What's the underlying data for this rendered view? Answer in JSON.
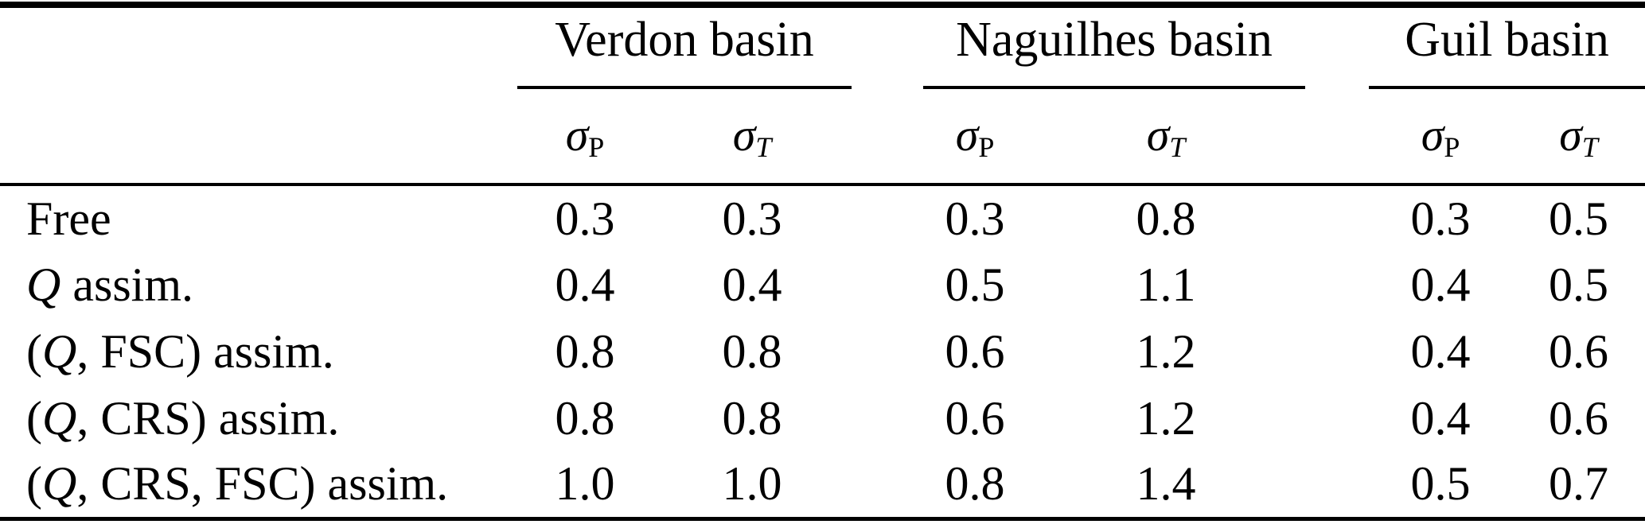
{
  "table": {
    "groups": [
      {
        "label": "Verdon basin"
      },
      {
        "label": "Naguilhes basin"
      },
      {
        "label": "Guil basin"
      }
    ],
    "col_header": {
      "sigma": "σ",
      "sub_precip": "P",
      "sub_temp": "T"
    },
    "rows": [
      {
        "label": {
          "pre": "Free",
          "q": "",
          "post": ""
        },
        "values": [
          "0.3",
          "0.3",
          "0.3",
          "0.8",
          "0.3",
          "0.5"
        ]
      },
      {
        "label": {
          "pre": "",
          "q": "Q",
          "post": " assim."
        },
        "values": [
          "0.4",
          "0.4",
          "0.5",
          "1.1",
          "0.4",
          "0.5"
        ]
      },
      {
        "label": {
          "pre": "(",
          "q": "Q",
          "post": ", FSC) assim."
        },
        "values": [
          "0.8",
          "0.8",
          "0.6",
          "1.2",
          "0.4",
          "0.6"
        ]
      },
      {
        "label": {
          "pre": "(",
          "q": "Q",
          "post": ", CRS) assim."
        },
        "values": [
          "0.8",
          "0.8",
          "0.6",
          "1.2",
          "0.4",
          "0.6"
        ]
      },
      {
        "label": {
          "pre": "(",
          "q": "Q",
          "post": ", CRS, FSC) assim."
        },
        "values": [
          "1.0",
          "1.0",
          "0.8",
          "1.4",
          "0.5",
          "0.7"
        ]
      }
    ],
    "colors": {
      "text": "#000000",
      "rule": "#000000",
      "background": "#ffffff"
    }
  }
}
